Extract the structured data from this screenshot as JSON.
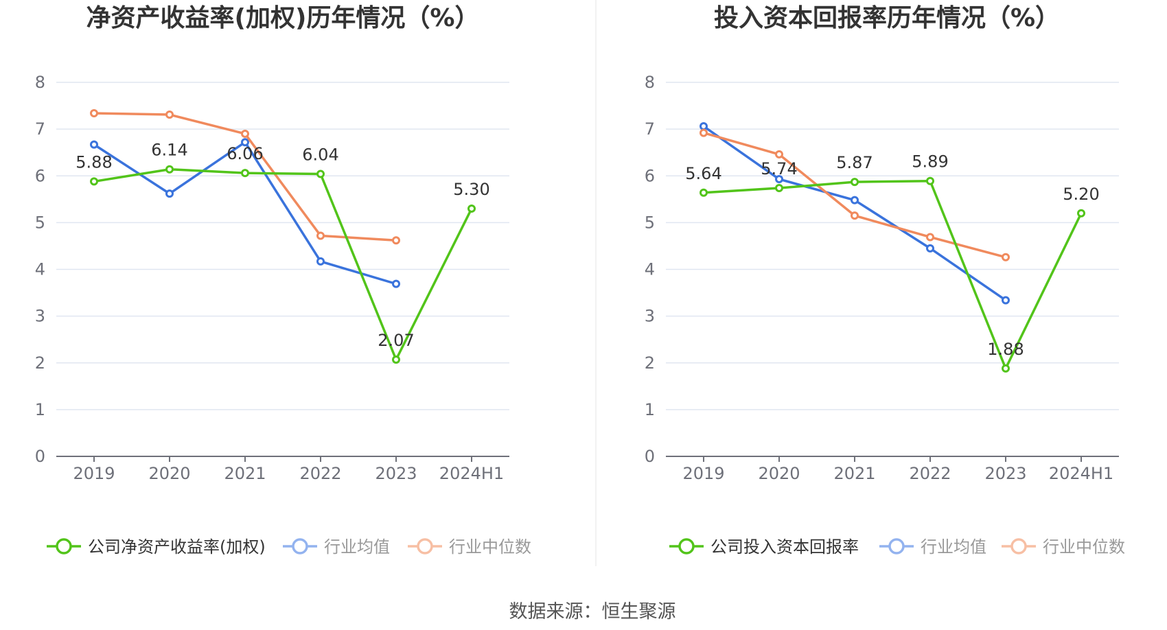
{
  "source_text": "数据来源：恒生聚源",
  "chart_data": [
    {
      "type": "line",
      "title": "净资产收益率(加权)历年情况（%）",
      "categories": [
        "2019",
        "2020",
        "2021",
        "2022",
        "2023",
        "2024H1"
      ],
      "ylim": [
        0,
        8
      ],
      "yticks": [
        "0",
        "1",
        "2",
        "3",
        "4",
        "5",
        "6",
        "7",
        "8"
      ],
      "grid": true,
      "legend_position": "bottom",
      "series": [
        {
          "name": "公司净资产收益率(加权)",
          "color": "#52c41a",
          "values": [
            5.88,
            6.14,
            6.06,
            6.04,
            2.07,
            5.3
          ],
          "labels": [
            "5.88",
            "6.14",
            "6.06",
            "6.04",
            "2.07",
            "5.30"
          ]
        },
        {
          "name": "行业均值",
          "color": "#3a73dc",
          "values": [
            6.67,
            5.62,
            6.72,
            4.17,
            3.69,
            null
          ]
        },
        {
          "name": "行业中位数",
          "color": "#f08a5d",
          "values": [
            7.34,
            7.31,
            6.9,
            4.72,
            4.62,
            null
          ]
        }
      ]
    },
    {
      "type": "line",
      "title": "投入资本回报率历年情况（%）",
      "categories": [
        "2019",
        "2020",
        "2021",
        "2022",
        "2023",
        "2024H1"
      ],
      "ylim": [
        0,
        8
      ],
      "yticks": [
        "0",
        "1",
        "2",
        "3",
        "4",
        "5",
        "6",
        "7",
        "8"
      ],
      "grid": true,
      "legend_position": "bottom",
      "series": [
        {
          "name": "公司投入资本回报率",
          "color": "#52c41a",
          "values": [
            5.64,
            5.74,
            5.87,
            5.89,
            1.88,
            5.2
          ],
          "labels": [
            "5.64",
            "5.74",
            "5.87",
            "5.89",
            "1.88",
            "5.20"
          ]
        },
        {
          "name": "行业均值",
          "color": "#3a73dc",
          "values": [
            7.06,
            5.93,
            5.48,
            4.45,
            3.34,
            null
          ]
        },
        {
          "name": "行业中位数",
          "color": "#f08a5d",
          "values": [
            6.92,
            6.46,
            5.15,
            4.69,
            4.26,
            null
          ]
        }
      ]
    }
  ]
}
